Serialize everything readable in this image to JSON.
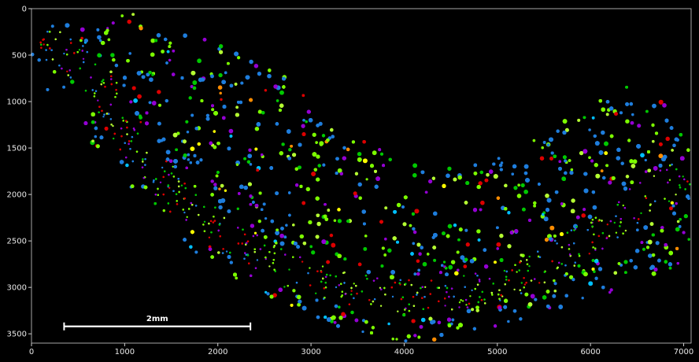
{
  "chart_data": {
    "type": "scatter",
    "title": "",
    "xlabel": "",
    "ylabel": "",
    "xlim": [
      0,
      7080
    ],
    "ylim": [
      3600,
      0
    ],
    "y_inverted": true,
    "grid": false,
    "background": "#000000",
    "x_ticks": [
      0,
      1000,
      2000,
      3000,
      4000,
      5000,
      6000,
      7000
    ],
    "x_tick_labels": [
      "0",
      "1000",
      "2000",
      "3000",
      "4000",
      "5000",
      "6000",
      "7000"
    ],
    "y_ticks": [
      0,
      500,
      1000,
      1500,
      2000,
      2500,
      3000,
      3500
    ],
    "y_tick_labels": [
      "0",
      "500",
      "1000",
      "1500",
      "2000",
      "2500",
      "3000",
      "3500"
    ],
    "palette": [
      "#1e7ddc",
      "#7cfc00",
      "#00c800",
      "#9400d3",
      "#dc0000",
      "#ffff00",
      "#ff8c00",
      "#00bfff",
      "#b4ff32",
      "#4b0082"
    ],
    "tissue_outline": {
      "outer": [
        [
          0,
          480
        ],
        [
          180,
          180
        ],
        [
          420,
          50
        ],
        [
          700,
          10
        ],
        [
          1000,
          30
        ],
        [
          1400,
          150
        ],
        [
          1800,
          300
        ],
        [
          2300,
          480
        ],
        [
          2700,
          720
        ],
        [
          3100,
          1100
        ],
        [
          3500,
          1380
        ],
        [
          3900,
          1600
        ],
        [
          4300,
          1720
        ],
        [
          4800,
          1650
        ],
        [
          5300,
          1480
        ],
        [
          5700,
          1200
        ],
        [
          6100,
          900
        ],
        [
          6450,
          780
        ],
        [
          6750,
          950
        ],
        [
          6950,
          1150
        ],
        [
          7080,
          1400
        ],
        [
          7080,
          2500
        ],
        [
          6950,
          2750
        ],
        [
          6500,
          3000
        ],
        [
          6000,
          3100
        ],
        [
          5500,
          3300
        ],
        [
          5000,
          3450
        ],
        [
          4500,
          3550
        ],
        [
          4000,
          3600
        ],
        [
          3500,
          3500
        ],
        [
          3000,
          3300
        ],
        [
          2500,
          3100
        ],
        [
          2000,
          2850
        ],
        [
          1600,
          2500
        ],
        [
          1200,
          2100
        ],
        [
          900,
          1700
        ],
        [
          600,
          1400
        ],
        [
          300,
          1100
        ],
        [
          80,
          800
        ]
      ],
      "band_center": [
        [
          250,
          400
        ],
        [
          600,
          650
        ],
        [
          900,
          1100
        ],
        [
          1200,
          1600
        ],
        [
          1600,
          2050
        ],
        [
          2100,
          2450
        ],
        [
          2700,
          2800
        ],
        [
          3300,
          3000
        ],
        [
          3900,
          3100
        ],
        [
          4500,
          3080
        ],
        [
          5100,
          2950
        ],
        [
          5600,
          2700
        ],
        [
          6100,
          2400
        ],
        [
          6500,
          2100
        ],
        [
          6900,
          1850
        ]
      ]
    },
    "scale_bar": {
      "label": "2mm",
      "x_start": 350,
      "x_end": 2350,
      "y": 3420
    }
  }
}
